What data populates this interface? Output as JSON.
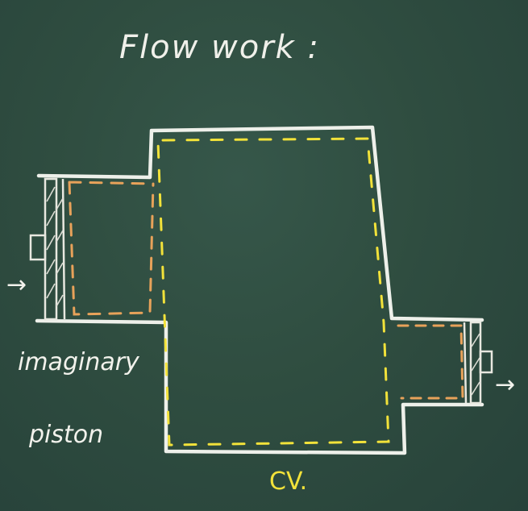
{
  "title": "Flow work :",
  "labels": {
    "imaginary": "imaginary",
    "piston": "piston",
    "cv": "CV."
  },
  "arrows": {
    "inlet": "→",
    "outlet": "→"
  },
  "colors": {
    "board": "#2f4d40",
    "chalk_white": "#eef0ea",
    "chalk_yellow": "#f2e23a",
    "chalk_orange": "#e8a25a"
  }
}
